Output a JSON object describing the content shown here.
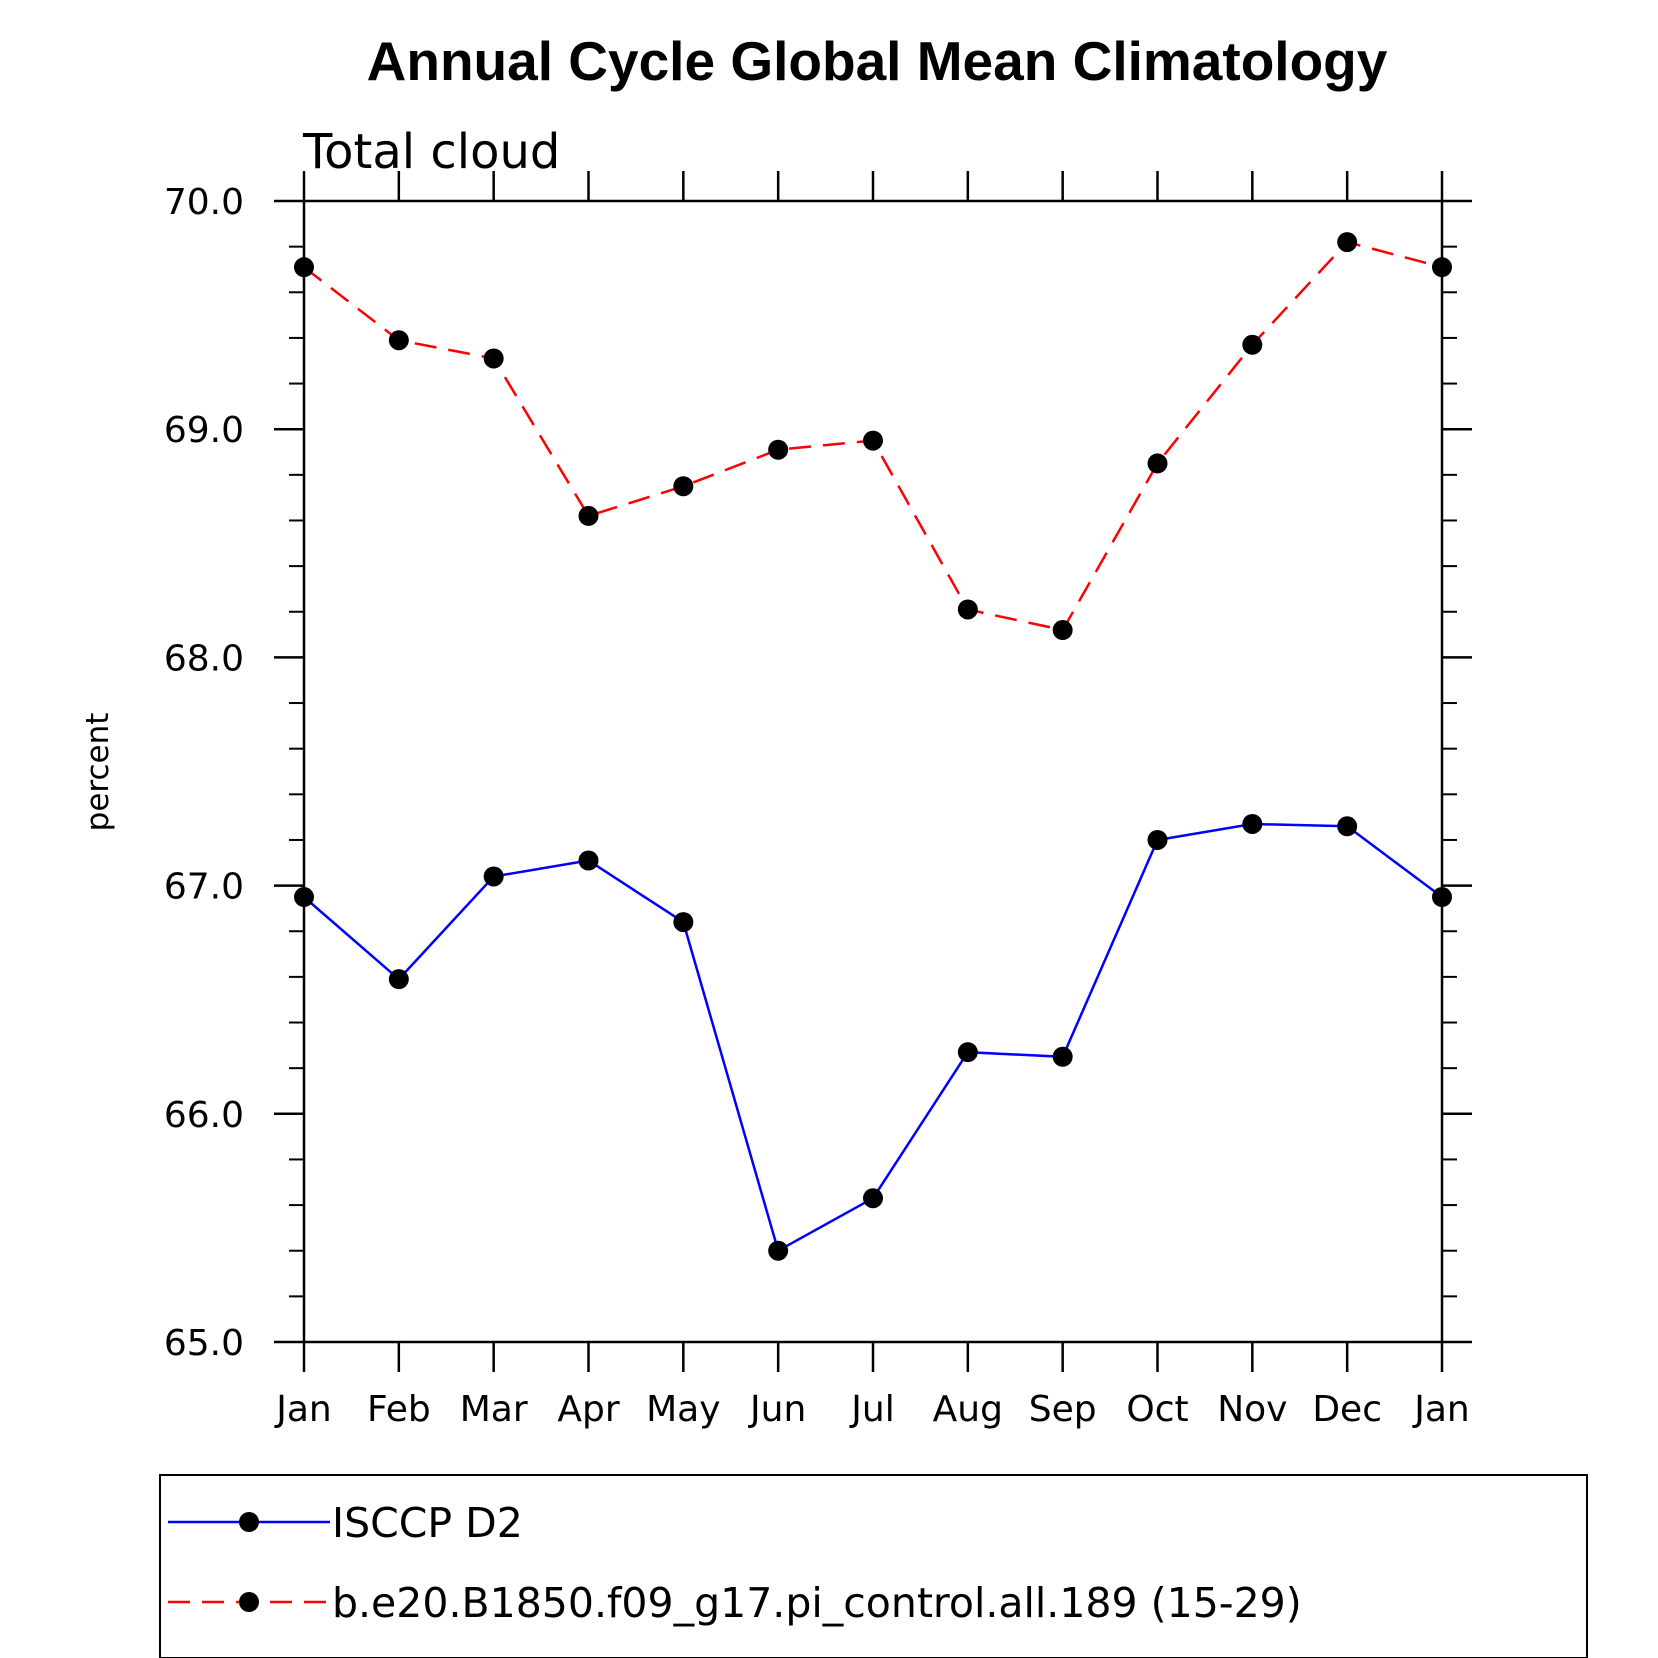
{
  "chart_data": {
    "type": "line",
    "title": "Annual Cycle Global Mean Climatology",
    "subtitle": "Total cloud",
    "xlabel": "",
    "ylabel": "percent",
    "categories": [
      "Jan",
      "Feb",
      "Mar",
      "Apr",
      "May",
      "Jun",
      "Jul",
      "Aug",
      "Sep",
      "Oct",
      "Nov",
      "Dec",
      "Jan"
    ],
    "ylim": [
      65.0,
      70.0
    ],
    "yticks": [
      "65.0",
      "66.0",
      "67.0",
      "68.0",
      "69.0",
      "70.0"
    ],
    "ytick_values": [
      65.0,
      66.0,
      67.0,
      68.0,
      69.0,
      70.0
    ],
    "yminor_step": 0.2,
    "grid": false,
    "legend_position": "bottom",
    "series": [
      {
        "name": "ISCCP D2",
        "color": "#0000ff",
        "style": "solid",
        "marker": "filled-circle",
        "values": [
          66.95,
          66.59,
          67.04,
          67.11,
          66.84,
          65.4,
          65.63,
          66.27,
          66.25,
          67.2,
          67.27,
          67.26,
          66.95
        ]
      },
      {
        "name": "b.e20.B1850.f09_g17.pi_control.all.189 (15-29)",
        "color": "#ff0000",
        "style": "dashed",
        "marker": "filled-circle",
        "values": [
          69.71,
          69.39,
          69.31,
          68.62,
          68.75,
          68.91,
          68.95,
          68.21,
          68.12,
          68.85,
          69.37,
          69.82,
          69.71
        ]
      }
    ]
  }
}
